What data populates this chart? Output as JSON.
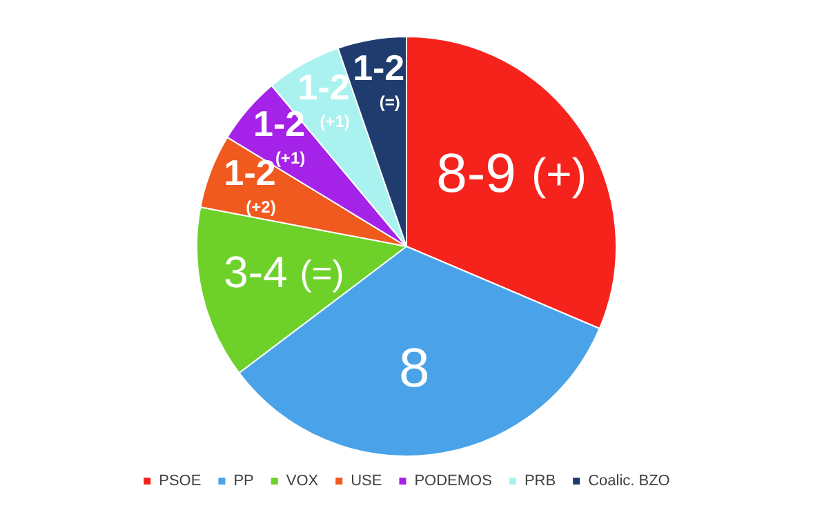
{
  "chart_data": {
    "type": "pie",
    "categories": [
      "PSOE",
      "PP",
      "VOX",
      "USE",
      "PODEMOS",
      "PRB",
      "Coalic. BZO"
    ],
    "values": [
      31.4,
      33.3,
      13.3,
      5.7,
      5.2,
      5.8,
      5.3
    ],
    "colors": [
      "#f5231c",
      "#4aa3e8",
      "#6dd12a",
      "#f05a1e",
      "#a523e8",
      "#a9f2ef",
      "#203c6e"
    ],
    "annotations": [
      {
        "text": "8-9 (+)",
        "x": "PSOE"
      },
      {
        "text": "8",
        "x": "PP"
      },
      {
        "text": "3-4 (=)",
        "x": "VOX"
      },
      {
        "text": "1-2 (+2)",
        "x": "USE"
      },
      {
        "text": "1-2 (+1)",
        "x": "PODEMOS"
      },
      {
        "text": "1-2 (+1)",
        "x": "PRB"
      },
      {
        "text": "1-2 (=)",
        "x": "Coalic. BZO"
      }
    ],
    "legend": "bottom"
  }
}
